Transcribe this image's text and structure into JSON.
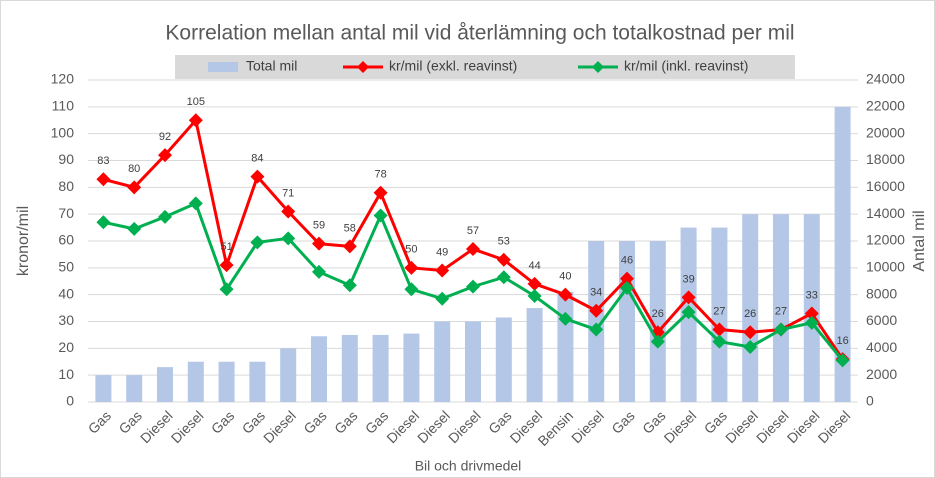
{
  "chart_data": {
    "type": "bar-line",
    "title": "Korrelation mellan antal mil vid återlämning och totalkostnad per mil",
    "x_label": "Bil och drivmedel",
    "y_label": "kronor/mil",
    "y2_label": "Antal mil",
    "categories": [
      "Gas",
      "Gas",
      "Diesel",
      "Diesel",
      "Gas",
      "Gas",
      "Diesel",
      "Gas",
      "Gas",
      "Gas",
      "Diesel",
      "Diesel",
      "Diesel",
      "Gas",
      "Diesel",
      "Bensin",
      "Diesel",
      "Gas",
      "Gas",
      "Diesel",
      "Gas",
      "Diesel",
      "Diesel",
      "Diesel",
      "Diesel"
    ],
    "series": [
      {
        "name": "Total mil",
        "type": "bar",
        "axis": "y2",
        "color": "#b4c7e7",
        "values": [
          2000,
          2000,
          2600,
          3000,
          3000,
          3000,
          4000,
          4900,
          5000,
          5000,
          5100,
          6000,
          6000,
          6300,
          7000,
          8200,
          12000,
          12000,
          12000,
          13000,
          13000,
          14000,
          14000,
          14000,
          22000
        ]
      },
      {
        "name": "kr/mil (exkl. reavinst)",
        "type": "line",
        "color": "#ff0000",
        "show_labels": true,
        "values": [
          83,
          80,
          92,
          105,
          51,
          84,
          71,
          59,
          58,
          78,
          50,
          49,
          57,
          53,
          44,
          40,
          34,
          46,
          26,
          39,
          27,
          26,
          27,
          33,
          16
        ]
      },
      {
        "name": "kr/mil (inkl. reavinst)",
        "type": "line",
        "color": "#00b050",
        "values": [
          67,
          64.5,
          69,
          74,
          42,
          59.5,
          61,
          48.5,
          43.5,
          69.5,
          42,
          38.5,
          43,
          46.5,
          39.5,
          31,
          27,
          42.5,
          22.5,
          33.5,
          22.5,
          20.5,
          27,
          29.5,
          15.5
        ]
      }
    ],
    "ylim": [
      0,
      120
    ],
    "yticks": [
      0,
      10,
      20,
      30,
      40,
      50,
      60,
      70,
      80,
      90,
      100,
      110,
      120
    ],
    "y2lim": [
      0,
      24000
    ],
    "y2ticks": [
      0,
      2000,
      4000,
      6000,
      8000,
      10000,
      12000,
      14000,
      16000,
      18000,
      20000,
      22000,
      24000
    ],
    "grid": true,
    "legend": "top"
  }
}
